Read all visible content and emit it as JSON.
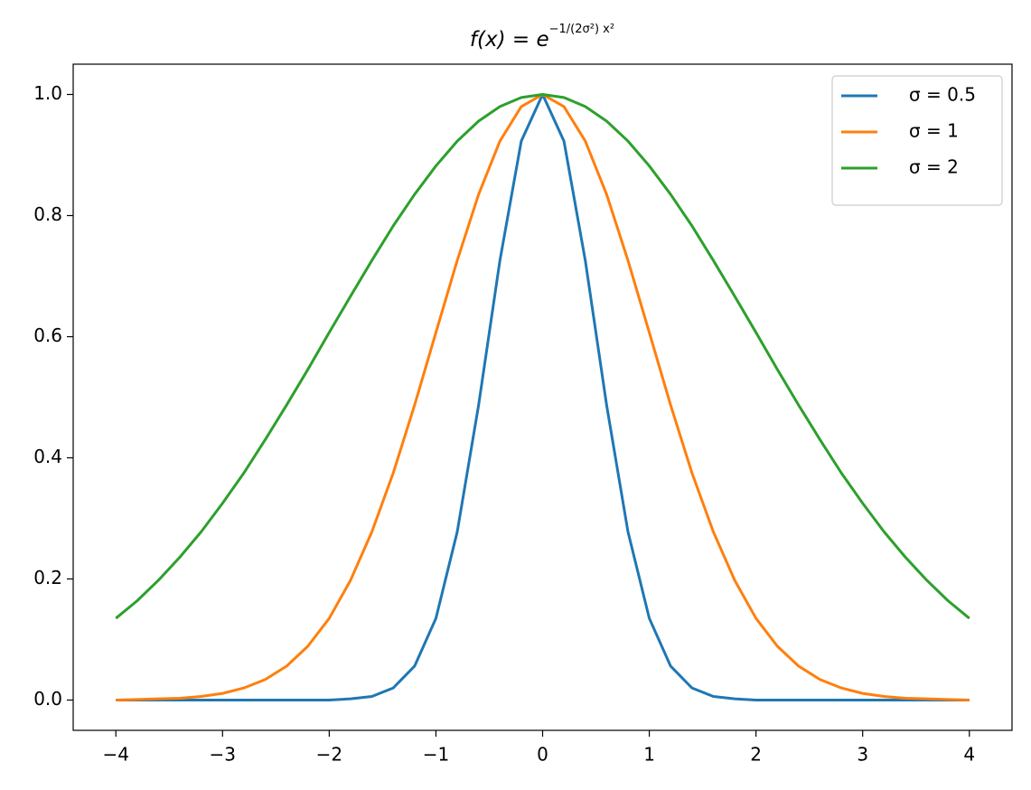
{
  "chart_data": {
    "type": "line",
    "title": {
      "base": "f(x) = e",
      "exponent": "−1/(2σ²) x²"
    },
    "x": [
      -4,
      -3.8,
      -3.6,
      -3.4,
      -3.2,
      -3,
      -2.8,
      -2.6,
      -2.4,
      -2.2,
      -2,
      -1.8,
      -1.6,
      -1.4,
      -1.2,
      -1,
      -0.8,
      -0.6,
      -0.4,
      -0.2,
      0,
      0.2,
      0.4,
      0.6,
      0.8,
      1,
      1.2,
      1.4,
      1.6,
      1.8,
      2,
      2.2,
      2.4,
      2.6,
      2.8,
      3,
      3.2,
      3.4,
      3.6,
      3.8,
      4
    ],
    "series": [
      {
        "name": "σ = 0.5",
        "color": "#1f77b4",
        "values": [
          0,
          0,
          0,
          0,
          0,
          0,
          0,
          0,
          0,
          0,
          0,
          0.002,
          0.006,
          0.02,
          0.056,
          0.135,
          0.278,
          0.487,
          0.726,
          0.923,
          1,
          0.923,
          0.726,
          0.487,
          0.278,
          0.135,
          0.056,
          0.02,
          0.006,
          0.002,
          0,
          0,
          0,
          0,
          0,
          0,
          0,
          0,
          0,
          0,
          0
        ]
      },
      {
        "name": "σ = 1",
        "color": "#ff7f0e",
        "values": [
          0,
          0.001,
          0.002,
          0.003,
          0.006,
          0.011,
          0.02,
          0.034,
          0.056,
          0.089,
          0.135,
          0.198,
          0.278,
          0.375,
          0.487,
          0.607,
          0.726,
          0.835,
          0.923,
          0.98,
          1,
          0.98,
          0.923,
          0.835,
          0.726,
          0.607,
          0.487,
          0.375,
          0.278,
          0.198,
          0.135,
          0.089,
          0.056,
          0.034,
          0.02,
          0.011,
          0.006,
          0.003,
          0.002,
          0.001,
          0
        ]
      },
      {
        "name": "σ = 2",
        "color": "#2ca02c",
        "values": [
          0.135,
          0.164,
          0.198,
          0.236,
          0.278,
          0.325,
          0.375,
          0.43,
          0.487,
          0.546,
          0.607,
          0.667,
          0.726,
          0.783,
          0.835,
          0.882,
          0.923,
          0.956,
          0.98,
          0.995,
          1,
          0.995,
          0.98,
          0.956,
          0.923,
          0.882,
          0.835,
          0.783,
          0.726,
          0.667,
          0.607,
          0.546,
          0.487,
          0.43,
          0.375,
          0.325,
          0.278,
          0.236,
          0.198,
          0.164,
          0.135
        ]
      }
    ],
    "xlim": [
      -4.4,
      4.4
    ],
    "xticks": [
      {
        "value": -4,
        "label": "−4"
      },
      {
        "value": -3,
        "label": "−3"
      },
      {
        "value": -2,
        "label": "−2"
      },
      {
        "value": -1,
        "label": "−1"
      },
      0,
      1,
      2,
      3,
      4
    ],
    "ylim": [
      -0.05,
      1.05
    ],
    "yticks": [
      {
        "value": 0,
        "label": "0.0"
      },
      {
        "value": 0.2,
        "label": "0.2"
      },
      {
        "value": 0.4,
        "label": "0.4"
      },
      {
        "value": 0.6,
        "label": "0.6"
      },
      {
        "value": 0.8,
        "label": "0.8"
      },
      {
        "value": 1,
        "label": "1.0"
      }
    ],
    "legend": "upper right"
  }
}
